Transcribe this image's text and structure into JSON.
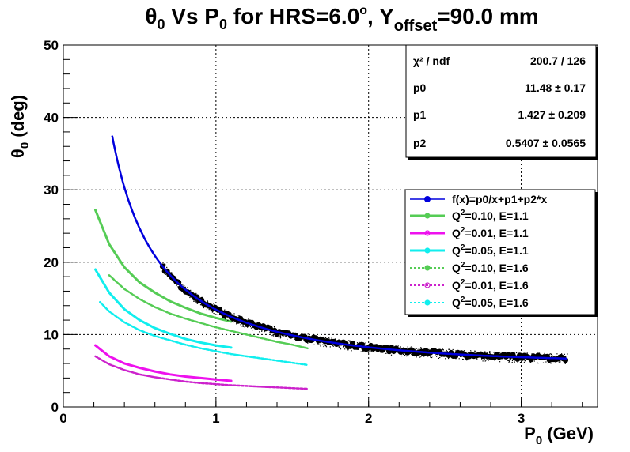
{
  "chart_data": {
    "type": "scatter",
    "title_main": "θ",
    "title_sub": "0",
    "title_mid": " Vs P",
    "title_sub2": "0",
    "title_rest": " for HRS=6.0",
    "title_deg": "o",
    "title_y": ", Y",
    "title_ysub": "offset",
    "title_end": "=90.0 mm",
    "xlabel_main": "P",
    "xlabel_sub": "0",
    "xlabel_rest": " (GeV)",
    "ylabel_main": "θ",
    "ylabel_sub": "0",
    "ylabel_rest": " (deg)",
    "xlim": [
      0,
      3.5
    ],
    "ylim": [
      0,
      50
    ],
    "x_ticks": [
      "0",
      "1",
      "2",
      "3"
    ],
    "y_ticks": [
      "0",
      "10",
      "20",
      "30",
      "40",
      "50"
    ],
    "grid": true,
    "fit": {
      "function": "p0/x+p1+p2*x",
      "p0": 11.48,
      "p1": 1.427,
      "p2": 0.5407,
      "x_range": [
        0.32,
        3.3
      ],
      "color": "#0000dd"
    },
    "data_points": {
      "x_range": [
        0.65,
        3.3
      ],
      "color": "#000000"
    },
    "stats": {
      "rows": [
        {
          "name": "χ² / ndf",
          "value": "200.7 / 126"
        },
        {
          "name": "p0",
          "value": "11.48 ± 0.17"
        },
        {
          "name": "p1",
          "value": "1.427 ± 0.209"
        },
        {
          "name": "p2",
          "value": "0.5407 ± 0.0565"
        }
      ]
    },
    "legend": {
      "position": "right",
      "entries": [
        {
          "label": "f(x)=p0/x+p1+p2*x",
          "color": "#0000dd",
          "dashed": false
        },
        {
          "label_pre": "Q",
          "label_sup": "2",
          "label_post": "=0.10, E=1.1",
          "color": "#55cc55",
          "dashed": false
        },
        {
          "label_pre": "Q",
          "label_sup": "2",
          "label_post": "=0.01, E=1.1",
          "color": "#ee11ee",
          "dashed": false
        },
        {
          "label_pre": "Q",
          "label_sup": "2",
          "label_post": "=0.05, E=1.1",
          "color": "#11eeee",
          "dashed": false
        },
        {
          "label_pre": "Q",
          "label_sup": "2",
          "label_post": "=0.10, E=1.6",
          "color": "#55cc55",
          "dashed": true
        },
        {
          "label_pre": "Q",
          "label_sup": "2",
          "label_post": "=0.01, E=1.6",
          "color": "#cc22cc",
          "dashed": true
        },
        {
          "label_pre": "Q",
          "label_sup": "2",
          "label_post": "=0.05, E=1.6",
          "color": "#11eeee",
          "dashed": true
        }
      ]
    },
    "series": [
      {
        "x": [
          0.21,
          0.3,
          0.4,
          0.5,
          0.6,
          0.7,
          0.8,
          0.9,
          1.0,
          1.1
        ],
        "y": [
          27.2,
          22.5,
          19.3,
          17.2,
          15.8,
          14.6,
          13.7,
          12.9,
          12.3,
          11.8
        ],
        "color": "#55cc55",
        "dashed": false
      },
      {
        "x": [
          0.21,
          0.3,
          0.4,
          0.5,
          0.6,
          0.7,
          0.8,
          0.9,
          1.0,
          1.1
        ],
        "y": [
          8.5,
          7.0,
          6.0,
          5.4,
          4.9,
          4.5,
          4.2,
          4.0,
          3.8,
          3.6
        ],
        "color": "#ee11ee",
        "dashed": false
      },
      {
        "x": [
          0.21,
          0.3,
          0.4,
          0.5,
          0.6,
          0.7,
          0.8,
          0.9,
          1.0,
          1.1
        ],
        "y": [
          19.0,
          15.8,
          13.5,
          12.0,
          10.9,
          10.1,
          9.4,
          8.9,
          8.5,
          8.2
        ],
        "color": "#11eeee",
        "dashed": false
      },
      {
        "x": [
          0.3,
          0.4,
          0.5,
          0.6,
          0.7,
          0.8,
          0.9,
          1.0,
          1.1,
          1.2,
          1.3,
          1.4,
          1.5,
          1.6
        ],
        "y": [
          18.2,
          16.3,
          14.9,
          13.8,
          12.9,
          12.2,
          11.6,
          11.0,
          10.5,
          10.0,
          9.5,
          9.0,
          8.6,
          8.1
        ],
        "color": "#55cc55",
        "dashed": true
      },
      {
        "x": [
          0.21,
          0.3,
          0.4,
          0.5,
          0.6,
          0.7,
          0.8,
          0.9,
          1.0,
          1.1,
          1.2,
          1.3,
          1.4,
          1.5,
          1.6
        ],
        "y": [
          7.0,
          5.9,
          5.1,
          4.5,
          4.1,
          3.8,
          3.5,
          3.3,
          3.15,
          3.0,
          2.9,
          2.8,
          2.7,
          2.6,
          2.5
        ],
        "color": "#cc22cc",
        "dashed": true
      },
      {
        "x": [
          0.24,
          0.3,
          0.4,
          0.5,
          0.6,
          0.7,
          0.8,
          0.9,
          1.0,
          1.1,
          1.2,
          1.3,
          1.4,
          1.5,
          1.6
        ],
        "y": [
          14.5,
          13.2,
          11.7,
          10.6,
          9.8,
          9.2,
          8.6,
          8.1,
          7.7,
          7.3,
          7.0,
          6.7,
          6.4,
          6.1,
          5.8
        ],
        "color": "#11eeee",
        "dashed": true
      }
    ]
  }
}
